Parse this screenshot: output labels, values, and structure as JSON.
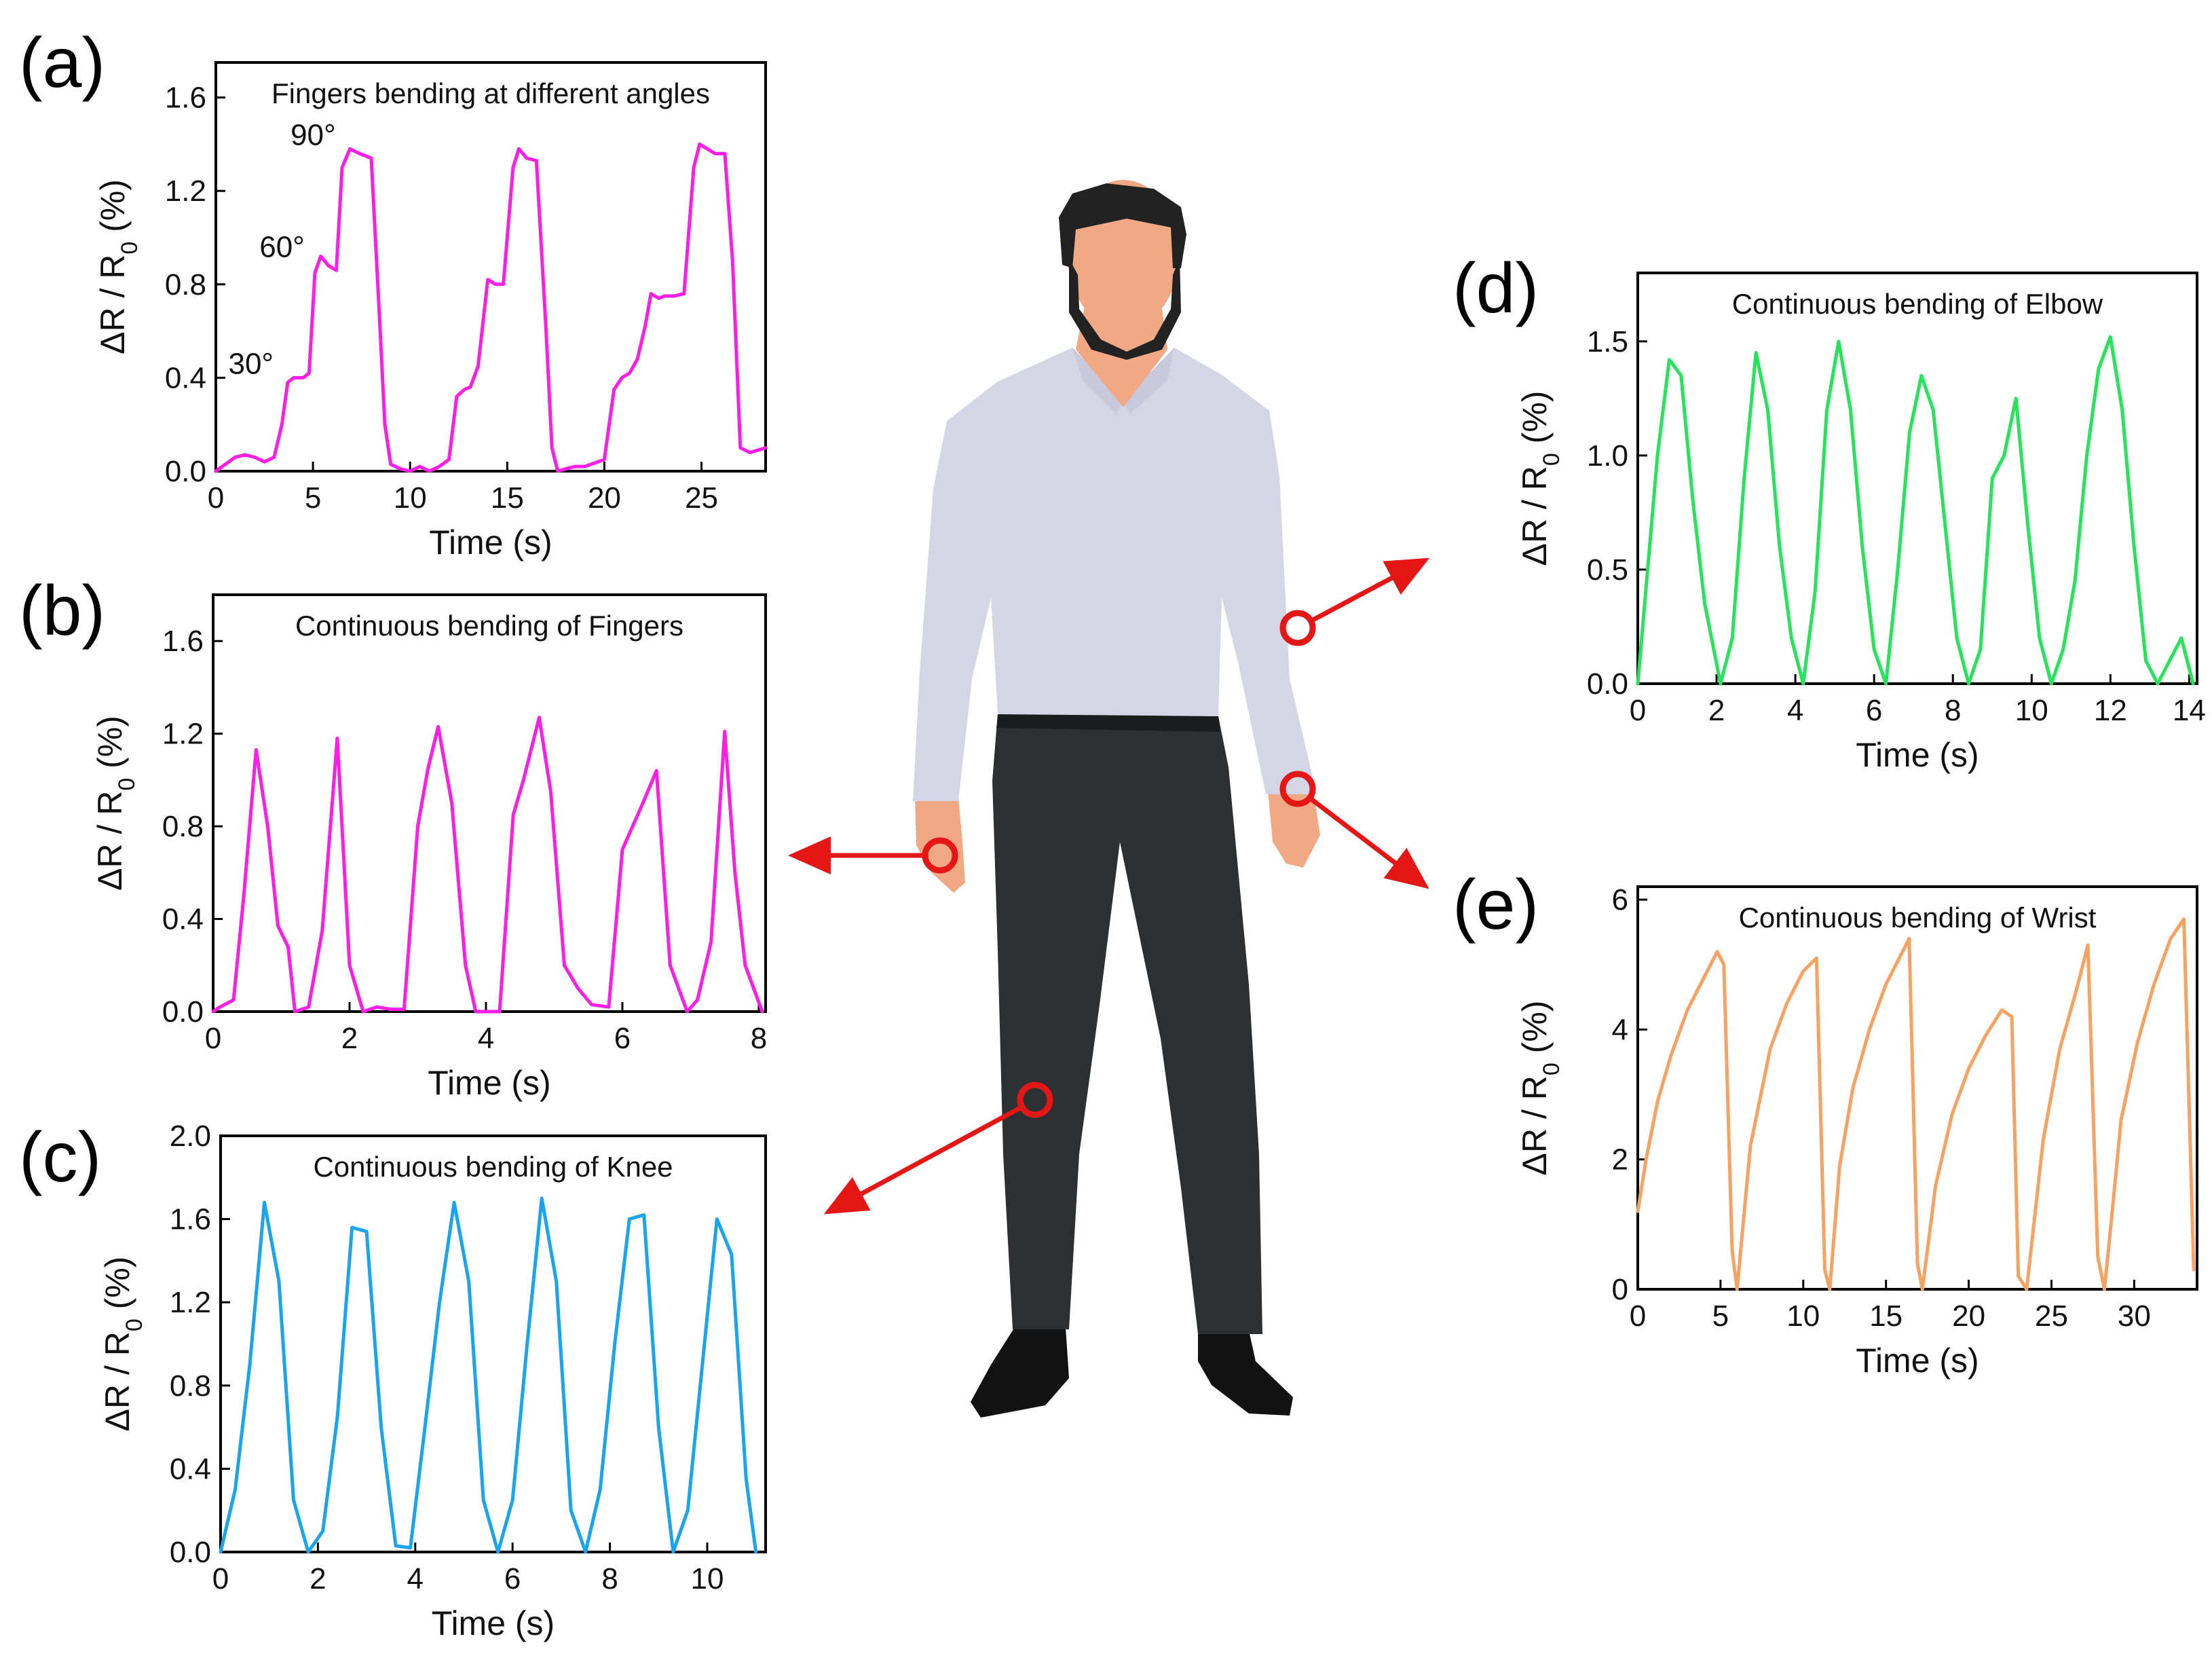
{
  "colors": {
    "magenta": "#ff1ee6",
    "blue": "#1aa3ee",
    "green": "#27e35a",
    "orange": "#f7a262",
    "arrow": "#e51616",
    "shirt": "#d4d6e6",
    "pants": "#2d3033",
    "skin": "#f1a884",
    "hair": "#222222",
    "shoes": "#121212"
  },
  "chart_data": [
    {
      "id": "a",
      "panel_label": "(a)",
      "type": "line",
      "title": "Fingers bending at different angles",
      "xlabel": "Time (s)",
      "ylabel": "ΔR / R0 (%)",
      "xlim": [
        0,
        28.3
      ],
      "ylim": [
        0,
        1.75
      ],
      "xticks": [
        0,
        5,
        10,
        15,
        20,
        25
      ],
      "yticks": [
        0.0,
        0.4,
        0.8,
        1.2,
        1.6
      ],
      "ytick_labels": [
        "0.0",
        "0.4",
        "0.8",
        "1.2",
        "1.6"
      ],
      "color_key": "magenta",
      "annotations": [
        {
          "text": "30°",
          "x": 3.6,
          "y": 0.4
        },
        {
          "text": "60°",
          "x": 5.2,
          "y": 0.9
        },
        {
          "text": "90°",
          "x": 6.8,
          "y": 1.38
        }
      ],
      "series": [
        {
          "name": "fingers angles",
          "x": [
            0,
            0.5,
            1.0,
            1.5,
            2.0,
            2.5,
            3.0,
            3.4,
            3.7,
            4.0,
            4.5,
            4.8,
            5.1,
            5.4,
            5.8,
            6.2,
            6.5,
            6.9,
            7.4,
            8.0,
            8.4,
            8.7,
            9.0,
            9.5,
            10.0,
            10.5,
            11.0,
            11.5,
            12.0,
            12.4,
            12.8,
            13.1,
            13.5,
            14.0,
            14.4,
            14.8,
            15.3,
            15.6,
            16.0,
            16.5,
            17.0,
            17.3,
            17.6,
            18.0,
            18.5,
            19.0,
            20.0,
            20.5,
            20.9,
            21.3,
            21.7,
            22.1,
            22.4,
            22.8,
            23.1,
            23.6,
            24.1,
            24.6,
            24.9,
            25.3,
            25.7,
            26.2,
            26.6,
            27.0,
            27.5,
            28.3
          ],
          "y": [
            0.0,
            0.03,
            0.06,
            0.07,
            0.06,
            0.04,
            0.06,
            0.2,
            0.38,
            0.4,
            0.4,
            0.42,
            0.85,
            0.92,
            0.88,
            0.86,
            1.3,
            1.38,
            1.36,
            1.34,
            0.7,
            0.2,
            0.03,
            0.01,
            0.0,
            0.02,
            0.0,
            0.02,
            0.05,
            0.32,
            0.35,
            0.36,
            0.45,
            0.82,
            0.8,
            0.8,
            1.3,
            1.38,
            1.34,
            1.33,
            0.6,
            0.1,
            0.0,
            0.01,
            0.02,
            0.02,
            0.05,
            0.35,
            0.4,
            0.42,
            0.48,
            0.62,
            0.76,
            0.74,
            0.75,
            0.75,
            0.76,
            1.3,
            1.4,
            1.38,
            1.36,
            1.36,
            0.9,
            0.1,
            0.08,
            0.1
          ]
        }
      ]
    },
    {
      "id": "b",
      "panel_label": "(b)",
      "type": "line",
      "title": "Continuous bending of Fingers",
      "xlabel": "Time (s)",
      "ylabel": "ΔR / R0 (%)",
      "xlim": [
        0,
        8.1
      ],
      "ylim": [
        0,
        1.8
      ],
      "xticks": [
        0,
        2,
        4,
        6,
        8
      ],
      "yticks": [
        0.0,
        0.4,
        0.8,
        1.2,
        1.6
      ],
      "ytick_labels": [
        "0.0",
        "0.4",
        "0.8",
        "1.2",
        "1.6"
      ],
      "color_key": "magenta",
      "annotations": [],
      "series": [
        {
          "name": "fingers",
          "x": [
            0,
            0.1,
            0.3,
            0.45,
            0.63,
            0.8,
            0.95,
            1.1,
            1.2,
            1.4,
            1.6,
            1.82,
            2.0,
            2.2,
            2.4,
            2.6,
            2.8,
            3.0,
            3.15,
            3.3,
            3.5,
            3.7,
            3.85,
            4.0,
            4.2,
            4.4,
            4.55,
            4.78,
            4.95,
            5.15,
            5.35,
            5.55,
            5.8,
            6.0,
            6.3,
            6.5,
            6.7,
            6.95,
            7.1,
            7.3,
            7.5,
            7.65,
            7.8,
            8.05
          ],
          "y": [
            0.0,
            0.02,
            0.05,
            0.5,
            1.13,
            0.8,
            0.37,
            0.28,
            0.0,
            0.02,
            0.35,
            1.18,
            0.2,
            0.0,
            0.02,
            0.01,
            0.01,
            0.8,
            1.05,
            1.23,
            0.9,
            0.2,
            0.0,
            0.0,
            0.0,
            0.85,
            1.0,
            1.27,
            0.95,
            0.2,
            0.1,
            0.03,
            0.02,
            0.7,
            0.9,
            1.04,
            0.2,
            0.0,
            0.05,
            0.3,
            1.21,
            0.6,
            0.2,
            0.0
          ]
        }
      ]
    },
    {
      "id": "c",
      "panel_label": "(c)",
      "type": "line",
      "title": "Continuous bending of Knee",
      "xlabel": "Time (s)",
      "ylabel": "ΔR / R0 (%)",
      "xlim": [
        0,
        11.2
      ],
      "ylim": [
        0,
        2.0
      ],
      "xticks": [
        0,
        2,
        4,
        6,
        8,
        10
      ],
      "yticks": [
        0.0,
        0.4,
        0.8,
        1.2,
        1.6,
        2.0
      ],
      "ytick_labels": [
        "0.0",
        "0.4",
        "0.8",
        "1.2",
        "1.6",
        "2.0"
      ],
      "color_key": "blue",
      "annotations": [],
      "series": [
        {
          "name": "knee",
          "x": [
            0,
            0.3,
            0.6,
            0.9,
            1.2,
            1.5,
            1.8,
            2.1,
            2.4,
            2.7,
            3.0,
            3.3,
            3.6,
            3.9,
            4.2,
            4.5,
            4.8,
            5.1,
            5.4,
            5.7,
            6.0,
            6.3,
            6.6,
            6.9,
            7.2,
            7.5,
            7.8,
            8.1,
            8.4,
            8.7,
            9.0,
            9.3,
            9.6,
            9.9,
            10.2,
            10.5,
            10.8,
            11.0
          ],
          "y": [
            0.0,
            0.3,
            0.9,
            1.68,
            1.3,
            0.25,
            0.0,
            0.1,
            0.65,
            1.56,
            1.54,
            0.6,
            0.03,
            0.02,
            0.6,
            1.2,
            1.68,
            1.3,
            0.25,
            0.0,
            0.25,
            1.0,
            1.7,
            1.3,
            0.2,
            0.0,
            0.3,
            1.0,
            1.6,
            1.62,
            0.6,
            0.0,
            0.2,
            0.9,
            1.6,
            1.43,
            0.35,
            0.0
          ]
        }
      ]
    },
    {
      "id": "d",
      "panel_label": "(d)",
      "type": "line",
      "title": "Continuous bending of Elbow",
      "xlabel": "Time (s)",
      "ylabel": "ΔR / R0 (%)",
      "xlim": [
        0,
        14.2
      ],
      "ylim": [
        0,
        1.8
      ],
      "xticks": [
        0,
        2,
        4,
        6,
        8,
        10,
        12,
        14
      ],
      "yticks": [
        0.0,
        0.5,
        1.0,
        1.5
      ],
      "ytick_labels": [
        "0.0",
        "0.5",
        "1.0",
        "1.5"
      ],
      "color_key": "green",
      "annotations": [],
      "series": [
        {
          "name": "elbow",
          "x": [
            0,
            0.2,
            0.5,
            0.8,
            1.1,
            1.4,
            1.7,
            2.1,
            2.4,
            2.7,
            3.0,
            3.3,
            3.6,
            3.9,
            4.2,
            4.5,
            4.8,
            5.1,
            5.4,
            5.7,
            6.0,
            6.3,
            6.6,
            6.9,
            7.2,
            7.5,
            7.8,
            8.1,
            8.4,
            8.7,
            9.0,
            9.3,
            9.6,
            9.9,
            10.2,
            10.5,
            10.8,
            11.1,
            11.4,
            11.7,
            12.0,
            12.3,
            12.6,
            12.9,
            13.2,
            13.5,
            13.8,
            14.1
          ],
          "y": [
            0.0,
            0.4,
            1.0,
            1.42,
            1.35,
            0.8,
            0.35,
            0.0,
            0.2,
            0.9,
            1.45,
            1.2,
            0.6,
            0.2,
            0.0,
            0.4,
            1.2,
            1.5,
            1.2,
            0.6,
            0.15,
            0.0,
            0.5,
            1.1,
            1.35,
            1.2,
            0.7,
            0.2,
            0.0,
            0.15,
            0.9,
            1.0,
            1.25,
            0.7,
            0.2,
            0.0,
            0.15,
            0.45,
            1.0,
            1.38,
            1.52,
            1.2,
            0.6,
            0.1,
            0.0,
            0.1,
            0.2,
            0.0
          ]
        }
      ]
    },
    {
      "id": "e",
      "panel_label": "(e)",
      "type": "line",
      "title": "Continuous bending of Wrist",
      "xlabel": "Time (s)",
      "ylabel": "ΔR / R0 (%)",
      "xlim": [
        0,
        33.8
      ],
      "ylim": [
        0,
        6.2
      ],
      "xticks": [
        0,
        5,
        10,
        15,
        20,
        25,
        30
      ],
      "yticks": [
        0,
        2,
        4,
        6
      ],
      "ytick_labels": [
        "0",
        "2",
        "4",
        "6"
      ],
      "color_key": "orange",
      "annotations": [],
      "series": [
        {
          "name": "wrist",
          "x": [
            0,
            0.5,
            1.2,
            2.0,
            3.0,
            4.0,
            4.8,
            5.2,
            5.7,
            6.0,
            6.8,
            8.0,
            9.0,
            10.0,
            10.8,
            11.3,
            11.6,
            12.2,
            13.0,
            14.0,
            15.0,
            16.0,
            16.4,
            16.9,
            17.2,
            18.0,
            19.0,
            20.0,
            21.0,
            22.0,
            22.6,
            23.0,
            23.5,
            24.5,
            25.5,
            26.5,
            27.2,
            27.8,
            28.2,
            28.6,
            29.2,
            30.2,
            31.2,
            32.2,
            33.0,
            33.6
          ],
          "y": [
            1.2,
            2.0,
            2.9,
            3.6,
            4.3,
            4.8,
            5.2,
            5.0,
            0.6,
            0.0,
            2.2,
            3.7,
            4.4,
            4.9,
            5.1,
            0.3,
            0.0,
            1.9,
            3.1,
            4.0,
            4.7,
            5.2,
            5.4,
            0.4,
            0.0,
            1.6,
            2.7,
            3.4,
            3.9,
            4.3,
            4.2,
            0.2,
            0.0,
            2.3,
            3.7,
            4.6,
            5.3,
            0.5,
            0.0,
            1.0,
            2.6,
            3.8,
            4.7,
            5.4,
            5.7,
            0.3
          ]
        }
      ]
    }
  ]
}
